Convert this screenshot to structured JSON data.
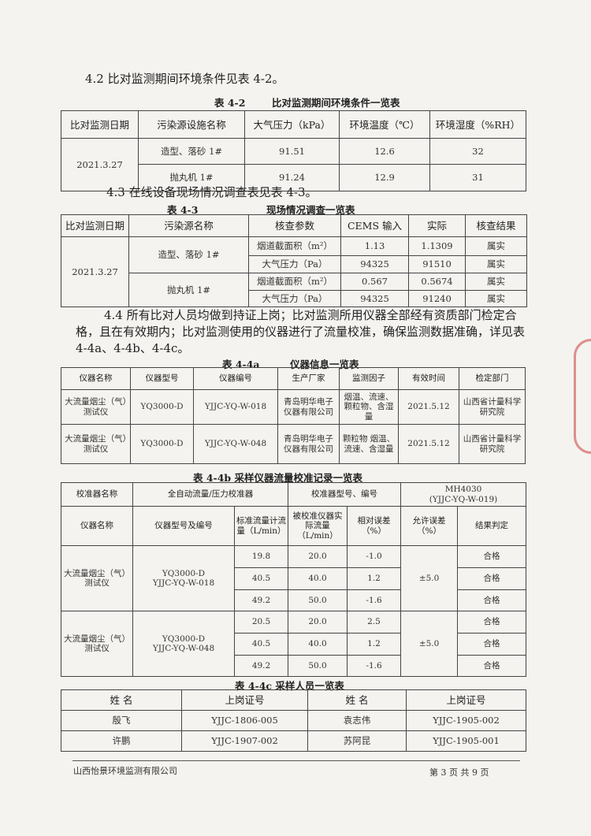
{
  "section_4_2": {
    "text": "4.2 比对监测期间环境条件见表 4-2。"
  },
  "table_4_2": {
    "caption_no": "表 4-2",
    "caption_title": "比对监测期间环境条件一览表",
    "headers": [
      "比对监测日期",
      "污染源设施名称",
      "大气压力（kPa）",
      "环境温度（℃）",
      "环境湿度（%RH）"
    ],
    "date": "2021.3.27",
    "rows": [
      {
        "source": "造型、落砂 1#",
        "pressure": "91.51",
        "temp": "12.6",
        "humidity": "32"
      },
      {
        "source": "抛丸机 1#",
        "pressure": "91.24",
        "temp": "12.9",
        "humidity": "31"
      }
    ]
  },
  "section_4_3": {
    "text": "4.3 在线设备现场情况调查表见表 4-3。"
  },
  "table_4_3": {
    "caption_no": "表 4-3",
    "caption_title": "现场情况调查一览表",
    "headers": [
      "比对监测日期",
      "污染源名称",
      "核查参数",
      "CEMS 输入",
      "实际",
      "核查结果"
    ],
    "date": "2021.3.27",
    "sources": [
      "造型、落砂 1#",
      "抛丸机 1#"
    ],
    "rows": [
      {
        "param": "烟道截面积（m²）",
        "cems": "1.13",
        "actual": "1.1309",
        "result": "属实"
      },
      {
        "param": "大气压力（Pa）",
        "cems": "94325",
        "actual": "91510",
        "result": "属实"
      },
      {
        "param": "烟道截面积（m²）",
        "cems": "0.567",
        "actual": "0.5674",
        "result": "属实"
      },
      {
        "param": "大气压力（Pa）",
        "cems": "94325",
        "actual": "91240",
        "result": "属实"
      }
    ]
  },
  "section_4_4": {
    "text": "4.4 所有比对人员均做到持证上岗；比对监测所用仪器全部经有资质部门检定合格，且在有效期内；比对监测使用的仪器进行了流量校准，确保监测数据准确，详见表 4-4a、4-4b、4-4c。"
  },
  "table_4_4a": {
    "caption_no": "表 4-4a",
    "caption_title": "仪器信息一览表",
    "headers": [
      "仪器名称",
      "仪器型号",
      "仪器编号",
      "生产厂家",
      "监测因子",
      "有效时间",
      "检定部门"
    ],
    "rows": [
      {
        "name": "大流量烟尘（气）测试仪",
        "model": "YQ3000-D",
        "serial": "YJJC-YQ-W-018",
        "maker": "青岛明华电子仪器有限公司",
        "factors": "烟温、流速、颗粒物、含湿量",
        "valid": "2021.5.12",
        "dept": "山西省计量科学研究院"
      },
      {
        "name": "大流量烟尘（气）测试仪",
        "model": "YQ3000-D",
        "serial": "YJJC-YQ-W-048",
        "maker": "青岛明华电子仪器有限公司",
        "factors": "颗粒物 烟温、流速、含湿量",
        "valid": "2021.5.12",
        "dept": "山西省计量科学研究院"
      }
    ]
  },
  "table_4_4b": {
    "caption": "表 4-4b 采样仪器流量校准记录一览表",
    "calibrator_label": "校准器名称",
    "calibrator_name": "全自动流量/压力校准器",
    "calibrator_model_label": "校准器型号、编号",
    "calibrator_model": "MH4030",
    "calibrator_serial": "(YJJC-YQ-W-019)",
    "headers": [
      "仪器名称",
      "仪器型号及编号",
      "标准流量计流量（L/min）",
      "被校准仪器实际流量（L/min）",
      "相对误差（%）",
      "允许误差（%）",
      "结果判定"
    ],
    "groups": [
      {
        "name": "大流量烟尘（气）测试仪",
        "model": "YQ3000-D",
        "serial": "YJJC-YQ-W-018",
        "allowed": "±5.0",
        "rows": [
          {
            "std": "19.8",
            "actual": "20.0",
            "err": "-1.0",
            "result": "合格"
          },
          {
            "std": "40.5",
            "actual": "40.0",
            "err": "1.2",
            "result": "合格"
          },
          {
            "std": "49.2",
            "actual": "50.0",
            "err": "-1.6",
            "result": "合格"
          }
        ]
      },
      {
        "name": "大流量烟尘（气）测试仪",
        "model": "YQ3000-D",
        "serial": "YJJC-YQ-W-048",
        "allowed": "±5.0",
        "rows": [
          {
            "std": "20.5",
            "actual": "20.0",
            "err": "2.5",
            "result": "合格"
          },
          {
            "std": "40.5",
            "actual": "40.0",
            "err": "1.2",
            "result": "合格"
          },
          {
            "std": "49.2",
            "actual": "50.0",
            "err": "-1.6",
            "result": "合格"
          }
        ]
      }
    ]
  },
  "table_4_4c": {
    "caption": "表 4-4c 采样人员一览表",
    "headers": [
      "姓  名",
      "上岗证号",
      "姓  名",
      "上岗证号"
    ],
    "rows": [
      [
        "殷飞",
        "YJJC-1806-005",
        "袁志伟",
        "YJJC-1905-002"
      ],
      [
        "许鹏",
        "YJJC-1907-002",
        "苏阿昆",
        "YJJC-1905-001"
      ]
    ]
  },
  "footer": {
    "company": "山西怡景环境监测有限公司",
    "page": "第 3 页 共 9 页"
  }
}
